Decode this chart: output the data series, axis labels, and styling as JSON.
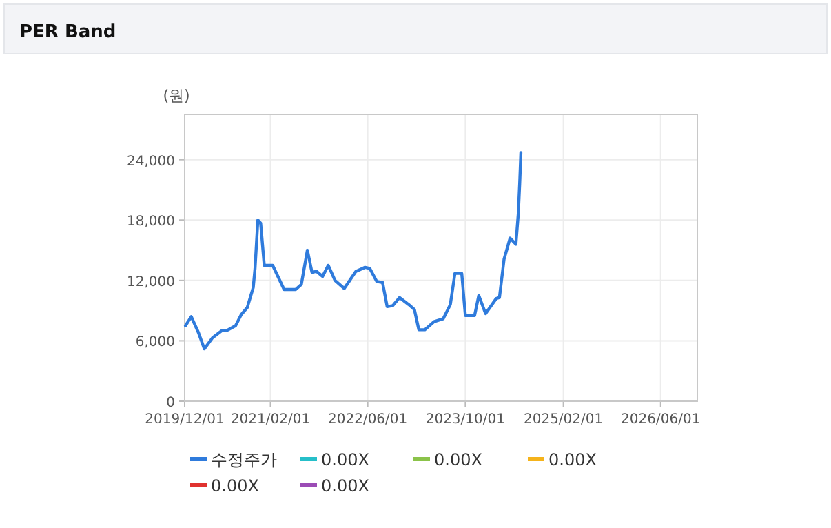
{
  "chart_data": {
    "type": "line",
    "title": "PER Band",
    "ylabel": "(원)",
    "xlim": [
      "2019-12-01",
      "2026-12-01"
    ],
    "ylim": [
      0,
      28500
    ],
    "xticks": [
      {
        "value": "2019-12-01",
        "label": "2019/12/01"
      },
      {
        "value": "2021-02-01",
        "label": "2021/02/01"
      },
      {
        "value": "2022-06-01",
        "label": "2022/06/01"
      },
      {
        "value": "2023-10-01",
        "label": "2023/10/01"
      },
      {
        "value": "2025-02-01",
        "label": "2025/02/01"
      },
      {
        "value": "2026-06-01",
        "label": "2026/06/01"
      }
    ],
    "yticks": [
      {
        "value": 0,
        "label": "0"
      },
      {
        "value": 6000,
        "label": "6,000"
      },
      {
        "value": 12000,
        "label": "12,000"
      },
      {
        "value": 18000,
        "label": "18,000"
      },
      {
        "value": 24000,
        "label": "24,000"
      }
    ],
    "grid": true,
    "legend": "bottom",
    "marker": "none",
    "line_style": "solid",
    "series": [
      {
        "name": "수정주가",
        "color": "#2f7bdc",
        "x": [
          "2019-12-05",
          "2020-01-03",
          "2020-02-08",
          "2020-03-08",
          "2020-04-18",
          "2020-06-03",
          "2020-06-26",
          "2020-08-11",
          "2020-09-08",
          "2020-10-08",
          "2020-11-07",
          "2020-11-16",
          "2020-11-30",
          "2020-12-14",
          "2021-01-01",
          "2021-02-12",
          "2021-04-10",
          "2021-06-07",
          "2021-07-05",
          "2021-08-04",
          "2021-08-27",
          "2021-09-19",
          "2021-10-19",
          "2021-11-16",
          "2021-12-20",
          "2022-02-04",
          "2022-04-03",
          "2022-05-19",
          "2022-06-11",
          "2022-07-16",
          "2022-08-14",
          "2022-09-06",
          "2022-10-04",
          "2022-11-07",
          "2022-12-23",
          "2023-01-20",
          "2023-02-11",
          "2023-03-13",
          "2023-04-28",
          "2023-06-13",
          "2023-07-18",
          "2023-08-10",
          "2023-09-13",
          "2023-10-01",
          "2023-11-16",
          "2023-12-07",
          "2024-01-10",
          "2024-03-03",
          "2024-03-19",
          "2024-04-11",
          "2024-05-11",
          "2024-06-09",
          "2024-06-21",
          "2024-06-28",
          "2024-07-04"
        ],
        "values": [
          7500,
          8400,
          6800,
          5200,
          6300,
          7000,
          7000,
          7500,
          8600,
          9300,
          11300,
          13200,
          18000,
          17700,
          13500,
          13500,
          11100,
          11100,
          11600,
          15000,
          12800,
          12900,
          12400,
          13500,
          12000,
          11200,
          12900,
          13300,
          13200,
          11900,
          11800,
          9400,
          9500,
          10300,
          9600,
          9100,
          7100,
          7100,
          7900,
          8200,
          9600,
          12700,
          12700,
          8500,
          8500,
          10500,
          8700,
          10200,
          10300,
          14100,
          16200,
          15600,
          18600,
          21600,
          24700
        ]
      },
      {
        "name": "0.00X",
        "color": "#26bfc9"
      },
      {
        "name": "0.00X",
        "color": "#8bc34a"
      },
      {
        "name": "0.00X",
        "color": "#f5b31b"
      },
      {
        "name": "0.00X",
        "color": "#e0322f"
      },
      {
        "name": "0.00X",
        "color": "#9b4cb5"
      }
    ]
  }
}
